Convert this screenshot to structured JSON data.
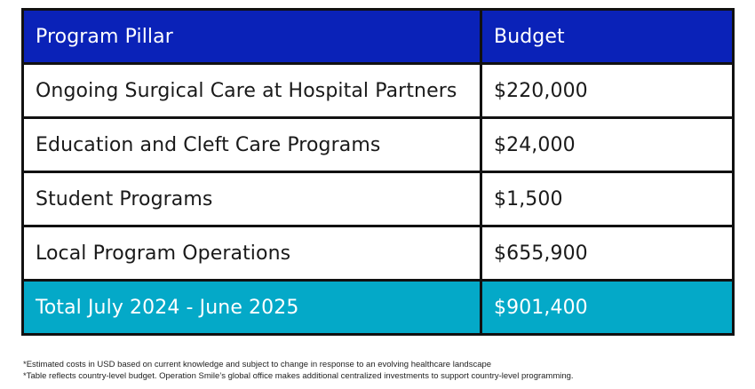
{
  "table": {
    "headers": [
      "Program Pillar",
      "Budget"
    ],
    "rows": [
      {
        "pillar": "Ongoing Surgical Care at Hospital Partners",
        "budget": "$220,000"
      },
      {
        "pillar": "Education and Cleft Care Programs",
        "budget": "$24,000"
      },
      {
        "pillar": "Student Programs",
        "budget": "$1,500"
      },
      {
        "pillar": "Local Program Operations",
        "budget": "$655,900"
      }
    ],
    "total": {
      "label": "Total July 2024 - June 2025",
      "budget": "$901,400"
    }
  },
  "footnotes": [
    "*Estimated costs in USD based on current knowledge and subject to change in response to an evolving healthcare landscape",
    "*Table reflects country-level budget. Operation Smile’s global office makes additional centralized investments to support country-level programming."
  ],
  "colors": {
    "header": "#0a22b8",
    "total": "#04a9c8"
  }
}
